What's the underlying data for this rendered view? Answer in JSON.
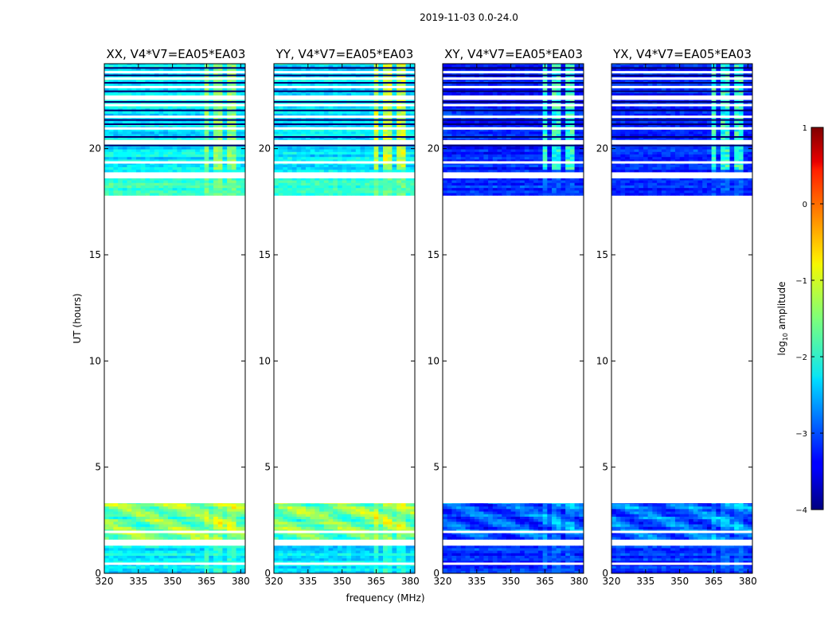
{
  "chart_data": {
    "type": "heatmap",
    "suptitle": "2019-11-03 0.0-24.0",
    "xlabel": "frequency (MHz)",
    "ylabel": "UT (hours)",
    "xlim": [
      320,
      382
    ],
    "ylim": [
      0,
      24
    ],
    "xticks": [
      "320",
      "335",
      "350",
      "365",
      "380"
    ],
    "xtick_values": [
      320,
      335,
      350,
      365,
      380
    ],
    "yticks": [
      "0",
      "5",
      "10",
      "15",
      "20"
    ],
    "ytick_values": [
      0,
      5,
      10,
      15,
      20
    ],
    "panels": [
      {
        "title": "XX, V4*V7=EA05*EA03",
        "pol": "XX",
        "early_level": -1.5,
        "rfi_peak": -1.2,
        "band_level": -2.2
      },
      {
        "title": "YY, V4*V7=EA05*EA03",
        "pol": "YY",
        "early_level": -1.5,
        "rfi_peak": -0.8,
        "band_level": -2.2
      },
      {
        "title": "XY, V4*V7=EA05*EA03",
        "pol": "XY",
        "early_level": -2.9,
        "rfi_peak": -1.5,
        "band_level": -3.2
      },
      {
        "title": "YX, V4*V7=EA05*EA03",
        "pol": "YX",
        "early_level": -2.9,
        "rfi_peak": -1.5,
        "band_level": -3.2
      }
    ],
    "data_blocks_hours": [
      [
        0.0,
        1.3
      ],
      [
        1.6,
        3.3
      ],
      [
        17.8,
        18.6
      ],
      [
        18.9,
        24.0
      ]
    ],
    "gap_hours": [
      3.3,
      17.8
    ],
    "rfi_band_mhz": [
      363,
      378
    ],
    "colorbar": {
      "label": "log10 amplitude",
      "range": [
        -4,
        1
      ],
      "ticks": [
        "1",
        "0",
        "−1",
        "−2",
        "−3",
        "−4"
      ],
      "tick_values": [
        1,
        0,
        -1,
        -2,
        -3,
        -4
      ],
      "colormap": "jet"
    }
  }
}
